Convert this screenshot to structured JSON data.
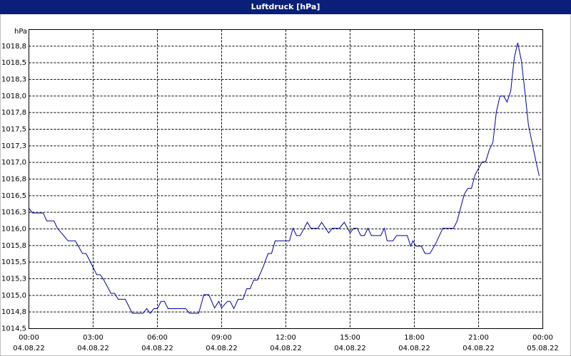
{
  "chart_data": {
    "type": "line",
    "title": "Luftdruck [hPa]",
    "y_label": "hPa",
    "x": [
      0,
      0.17,
      0.67,
      0.83,
      1.17,
      1.33,
      1.83,
      2.17,
      2.5,
      2.67,
      3.17,
      3.33,
      3.5,
      3.83,
      4,
      4.17,
      4.5,
      4.83,
      5.33,
      5.5,
      5.67,
      5.83,
      6,
      6.17,
      6.33,
      6.5,
      7.33,
      7.5,
      7.93,
      8.17,
      8.4,
      8.67,
      8.87,
      9,
      9.27,
      9.4,
      9.57,
      9.77,
      10,
      10.17,
      10.33,
      10.5,
      10.67,
      10.93,
      11.17,
      11.33,
      11.5,
      12.17,
      12.33,
      12.5,
      12.67,
      13,
      13.17,
      13.5,
      13.67,
      14,
      14.17,
      14.5,
      14.73,
      15,
      15.17,
      15.33,
      15.5,
      15.67,
      15.83,
      16,
      16.43,
      16.6,
      16.73,
      17,
      17.17,
      17.67,
      17.83,
      17.93,
      18.07,
      18.33,
      18.5,
      18.73,
      19,
      19.33,
      19.83,
      20,
      20.33,
      20.5,
      20.67,
      20.83,
      21.17,
      21.33,
      21.5,
      21.67,
      21.83,
      22,
      22.17,
      22.33,
      22.5,
      22.67,
      22.83,
      23,
      23.17,
      23.33,
      23.5,
      23.67,
      23.83
    ],
    "series": [
      {
        "color": "#0000a0",
        "values": [
          1016.31,
          1016.24,
          1016.24,
          1016.12,
          1016.12,
          1016.01,
          1015.82,
          1015.82,
          1015.63,
          1015.63,
          1015.31,
          1015.31,
          1015.23,
          1015.03,
          1015.03,
          1014.94,
          1014.94,
          1014.73,
          1014.73,
          1014.8,
          1014.73,
          1014.8,
          1014.8,
          1014.91,
          1014.91,
          1014.8,
          1014.8,
          1014.73,
          1014.73,
          1015.01,
          1015.01,
          1014.81,
          1014.91,
          1014.81,
          1014.91,
          1014.91,
          1014.8,
          1014.94,
          1014.94,
          1015.1,
          1015.1,
          1015.23,
          1015.23,
          1015.42,
          1015.63,
          1015.63,
          1015.82,
          1015.82,
          1016.01,
          1015.9,
          1015.9,
          1016.1,
          1016.01,
          1016.01,
          1016.1,
          1015.94,
          1016.01,
          1016.01,
          1016.1,
          1015.94,
          1016.01,
          1016.01,
          1015.9,
          1015.9,
          1016.01,
          1015.9,
          1015.9,
          1016.01,
          1015.82,
          1015.82,
          1015.9,
          1015.9,
          1015.74,
          1015.82,
          1015.74,
          1015.74,
          1015.63,
          1015.63,
          1015.78,
          1016.01,
          1016.01,
          1016.12,
          1016.52,
          1016.61,
          1016.61,
          1016.81,
          1017.01,
          1017.01,
          1017.19,
          1017.3,
          1017.76,
          1018.0,
          1018.0,
          1017.91,
          1018.07,
          1018.58,
          1018.8,
          1018.53,
          1018.05,
          1017.56,
          1017.3,
          1017.03,
          1016.8
        ]
      }
    ],
    "xlim": [
      0,
      24
    ],
    "xticks": [
      {
        "value": 0,
        "label": "00:00"
      },
      {
        "value": 3,
        "label": "03:00"
      },
      {
        "value": 6,
        "label": "06:00"
      },
      {
        "value": 9,
        "label": "09:00"
      },
      {
        "value": 12,
        "label": "12:00"
      },
      {
        "value": 15,
        "label": "15:00"
      },
      {
        "value": 18,
        "label": "18:00"
      },
      {
        "value": 21,
        "label": "21:00"
      },
      {
        "value": 24,
        "label": "00:00"
      }
    ],
    "xtick_dates": [
      "04.08.22",
      "04.08.22",
      "04.08.22",
      "04.08.22",
      "04.08.22",
      "04.08.22",
      "04.08.22",
      "04.08.22",
      "05.08.22"
    ],
    "ylim": [
      1014.5,
      1019.0
    ],
    "yticks": [
      {
        "value": 1014.5,
        "label": "1014,5"
      },
      {
        "value": 1014.75,
        "label": "1014,8"
      },
      {
        "value": 1015.0,
        "label": "1015,0"
      },
      {
        "value": 1015.25,
        "label": "1015,3"
      },
      {
        "value": 1015.5,
        "label": "1015,5"
      },
      {
        "value": 1015.75,
        "label": "1015,8"
      },
      {
        "value": 1016.0,
        "label": "1016,0"
      },
      {
        "value": 1016.25,
        "label": "1016,3"
      },
      {
        "value": 1016.5,
        "label": "1016,5"
      },
      {
        "value": 1016.75,
        "label": "1016,8"
      },
      {
        "value": 1017.0,
        "label": "1017,0"
      },
      {
        "value": 1017.25,
        "label": "1017,3"
      },
      {
        "value": 1017.5,
        "label": "1017,5"
      },
      {
        "value": 1017.75,
        "label": "1017,8"
      },
      {
        "value": 1018.0,
        "label": "1018,0"
      },
      {
        "value": 1018.25,
        "label": "1018,3"
      },
      {
        "value": 1018.5,
        "label": "1018,5"
      },
      {
        "value": 1018.75,
        "label": "1018,8"
      }
    ],
    "grid": true
  }
}
